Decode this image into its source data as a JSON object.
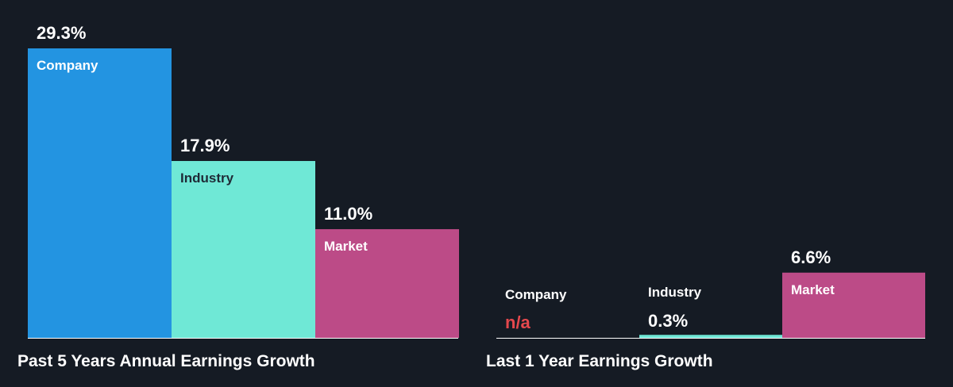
{
  "colors": {
    "background": "#151b24",
    "company": "#2394e1",
    "industry": "#6fe8d6",
    "market": "#bc4b87",
    "na_text": "#e5484d",
    "label_on_light": "#1f2a36",
    "label_on_dark": "#ffffff",
    "axis": "#ffffff"
  },
  "chart_data": [
    {
      "type": "bar",
      "title": "Past 5 Years Annual Earnings Growth",
      "categories": [
        "Company",
        "Industry",
        "Market"
      ],
      "values": [
        29.3,
        17.9,
        11.0
      ],
      "value_labels": [
        "29.3%",
        "17.9%",
        "11.0%"
      ],
      "ylim": [
        0,
        29.3
      ],
      "grid": false
    },
    {
      "type": "bar",
      "title": "Last 1 Year Earnings Growth",
      "categories": [
        "Company",
        "Industry",
        "Market"
      ],
      "values": [
        null,
        0.3,
        6.6
      ],
      "value_labels": [
        "n/a",
        "0.3%",
        "6.6%"
      ],
      "ylim": [
        0,
        29.3
      ],
      "grid": false
    }
  ]
}
